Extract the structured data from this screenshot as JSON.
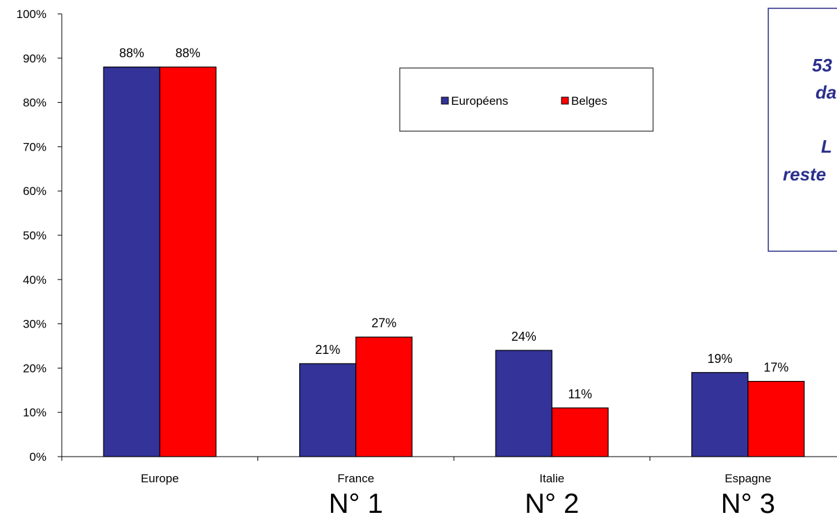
{
  "chart_data": {
    "type": "bar",
    "categories": [
      "Europe",
      "France",
      "Italie",
      "Espagne"
    ],
    "ranks": [
      "",
      "N° 1",
      "N° 2",
      "N° 3"
    ],
    "series": [
      {
        "name": "Européens",
        "values": [
          88,
          21,
          24,
          19
        ],
        "labels": [
          "88%",
          "21%",
          "24%",
          "19%"
        ],
        "color": "#333399"
      },
      {
        "name": "Belges",
        "values": [
          88,
          27,
          11,
          17
        ],
        "labels": [
          "88%",
          "27%",
          "11%",
          "17%"
        ],
        "color": "#ff0000"
      }
    ],
    "ylim": [
      0,
      100
    ],
    "yticks": [
      "0%",
      "10%",
      "20%",
      "30%",
      "40%",
      "50%",
      "60%",
      "70%",
      "80%",
      "90%",
      "100%"
    ],
    "grid": false,
    "legend_position": "top-center"
  },
  "note_box": {
    "lines": [
      "53",
      "da",
      "",
      "L",
      "reste"
    ],
    "border_color": "#2b2f8c",
    "text_color": "#2b2f8c"
  }
}
